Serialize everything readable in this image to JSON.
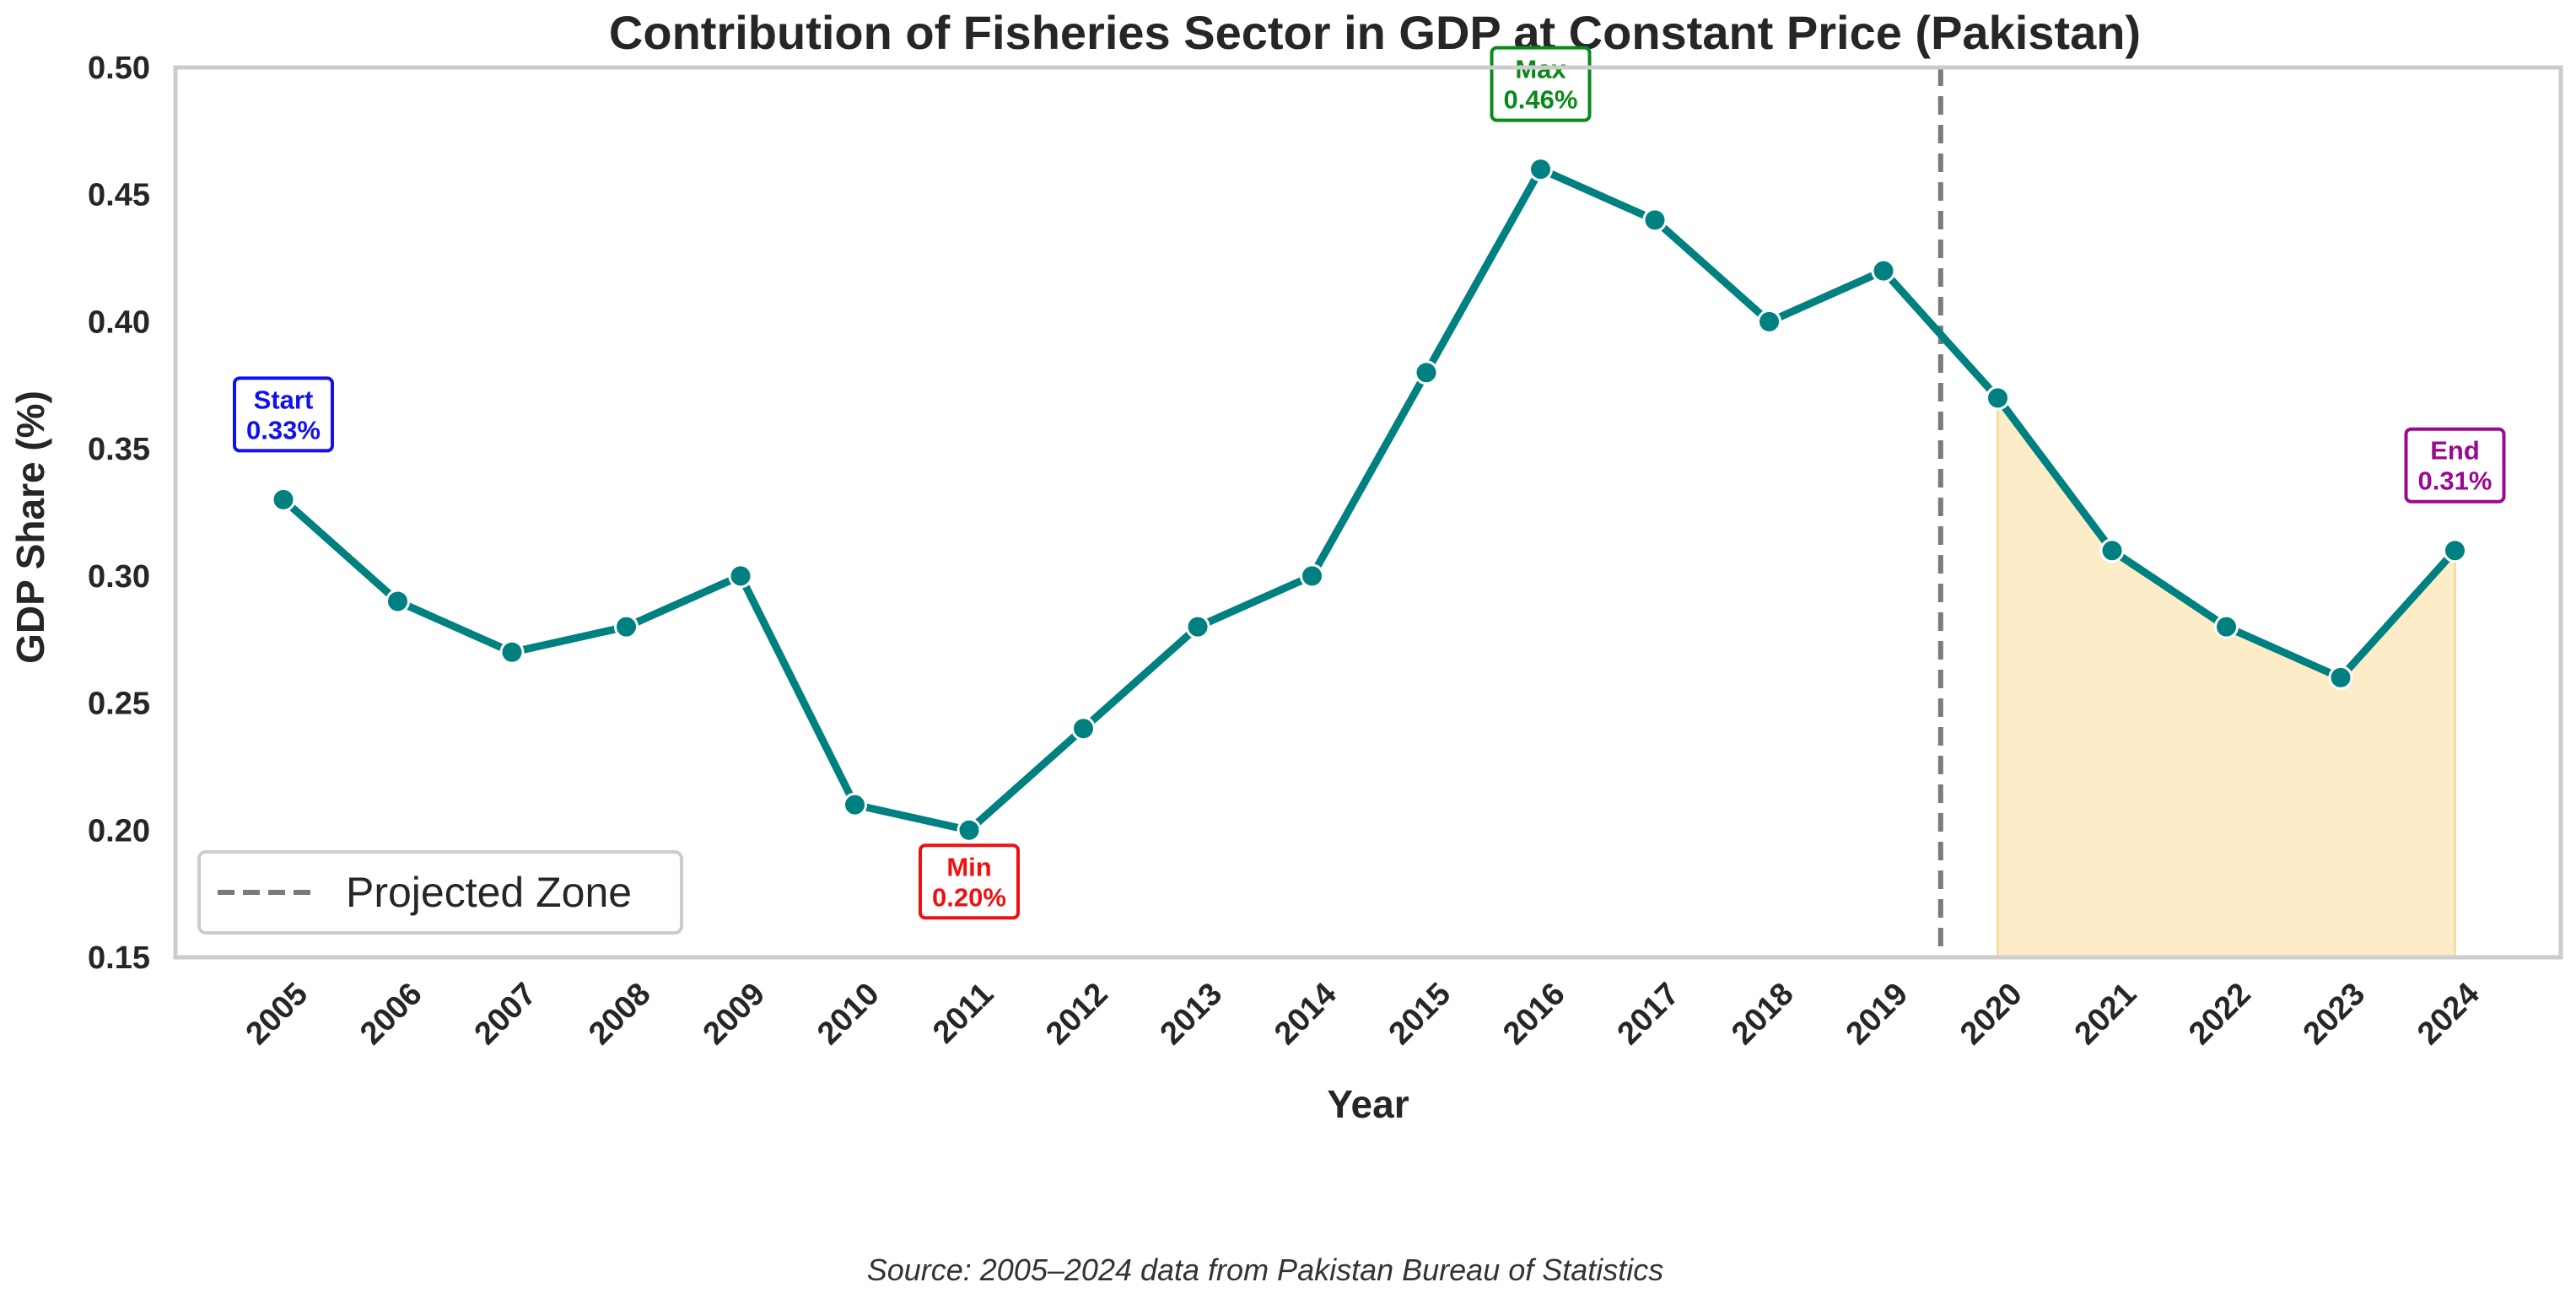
{
  "chart_data": {
    "type": "line",
    "title": "Contribution of Fisheries Sector in GDP at Constant Price (Pakistan)",
    "xlabel": "Year",
    "ylabel": "GDP Share (%)",
    "ylim": [
      0.15,
      0.5
    ],
    "yticks": [
      "0.15",
      "0.20",
      "0.25",
      "0.30",
      "0.35",
      "0.40",
      "0.45",
      "0.50"
    ],
    "categories": [
      "2005",
      "2006",
      "2007",
      "2008",
      "2009",
      "2010",
      "2011",
      "2012",
      "2013",
      "2014",
      "2015",
      "2016",
      "2017",
      "2018",
      "2019",
      "2020",
      "2021",
      "2022",
      "2023",
      "2024"
    ],
    "values": [
      0.33,
      0.29,
      0.27,
      0.28,
      0.3,
      0.21,
      0.2,
      0.24,
      0.28,
      0.3,
      0.38,
      0.46,
      0.44,
      0.4,
      0.42,
      0.37,
      0.31,
      0.28,
      0.26,
      0.31
    ],
    "projection_divider_position": 14.5,
    "projected_range": [
      "2020",
      "2024"
    ],
    "legend": {
      "label": "Projected Zone",
      "position": "lower-left"
    },
    "annotations": [
      {
        "id": "start",
        "index": 0,
        "title": "Start",
        "value": "0.33%",
        "color": "#1010f0",
        "placement": "above"
      },
      {
        "id": "min",
        "index": 6,
        "title": "Min",
        "value": "0.20%",
        "color": "#ee1111",
        "placement": "below"
      },
      {
        "id": "max",
        "index": 11,
        "title": "Max",
        "value": "0.46%",
        "color": "#0a8a1a",
        "placement": "above"
      },
      {
        "id": "end",
        "index": 19,
        "title": "End",
        "value": "0.31%",
        "color": "#9a0a90",
        "placement": "above"
      }
    ],
    "grid": false
  },
  "source_note": "Source: 2005–2024 data from Pakistan Bureau of Statistics",
  "colors": {
    "line": "#008080",
    "projection_fill": "#fcecc8",
    "divider": "#7a7a7a",
    "frame": "#cccccc"
  }
}
